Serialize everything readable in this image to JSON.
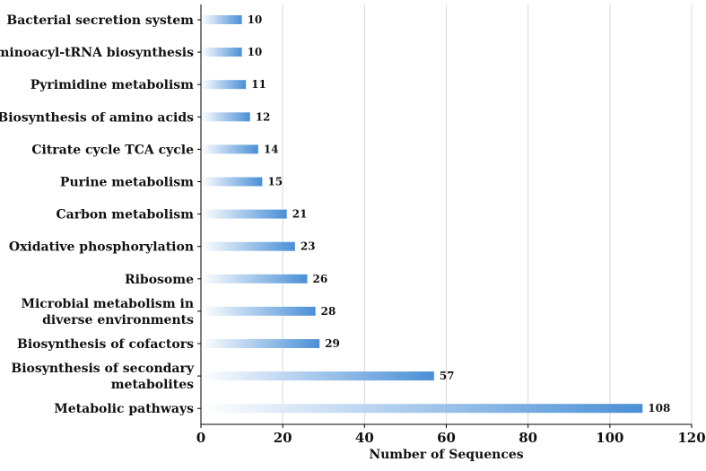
{
  "chart_data": {
    "type": "bar",
    "orientation": "horizontal",
    "title": "",
    "xlabel": "Number of Sequences",
    "ylabel": "",
    "xlim": [
      0,
      120
    ],
    "xticks": [
      0,
      20,
      40,
      60,
      80,
      100,
      120
    ],
    "grid": "vertical",
    "categories": [
      "Bacterial secretion system",
      "Aminoacyl-tRNA biosynthesis",
      "Pyrimidine metabolism",
      "Biosynthesis of amino acids",
      "Citrate cycle TCA cycle",
      "Purine metabolism",
      "Carbon metabolism",
      "Oxidative phosphorylation",
      "Ribosome",
      "Microbial metabolism in diverse environments",
      "Biosynthesis of cofactors",
      "Biosynthesis of secondary metabolites",
      "Metabolic pathways"
    ],
    "category_lines": [
      [
        "Bacterial secretion system"
      ],
      [
        "Aminoacyl-tRNA biosynthesis"
      ],
      [
        "Pyrimidine metabolism"
      ],
      [
        "Biosynthesis of amino acids"
      ],
      [
        "Citrate cycle TCA cycle"
      ],
      [
        "Purine metabolism"
      ],
      [
        "Carbon metabolism"
      ],
      [
        "Oxidative phosphorylation"
      ],
      [
        "Ribosome"
      ],
      [
        "Microbial metabolism in",
        "diverse environments"
      ],
      [
        "Biosynthesis of cofactors"
      ],
      [
        "Biosynthesis of secondary",
        "metabolites"
      ],
      [
        "Metabolic pathways"
      ]
    ],
    "values": [
      10,
      10,
      11,
      12,
      14,
      15,
      21,
      23,
      26,
      28,
      29,
      57,
      108
    ],
    "value_labels": [
      "10",
      "10",
      "11",
      "12",
      "14",
      "15",
      "21",
      "23",
      "26",
      "28",
      "29",
      "57",
      "108"
    ],
    "colors": {
      "bar_start": "#ffffff",
      "bar_end": "#4a8fd6",
      "grid": "#d9d9d9",
      "axis": "#000000"
    }
  }
}
